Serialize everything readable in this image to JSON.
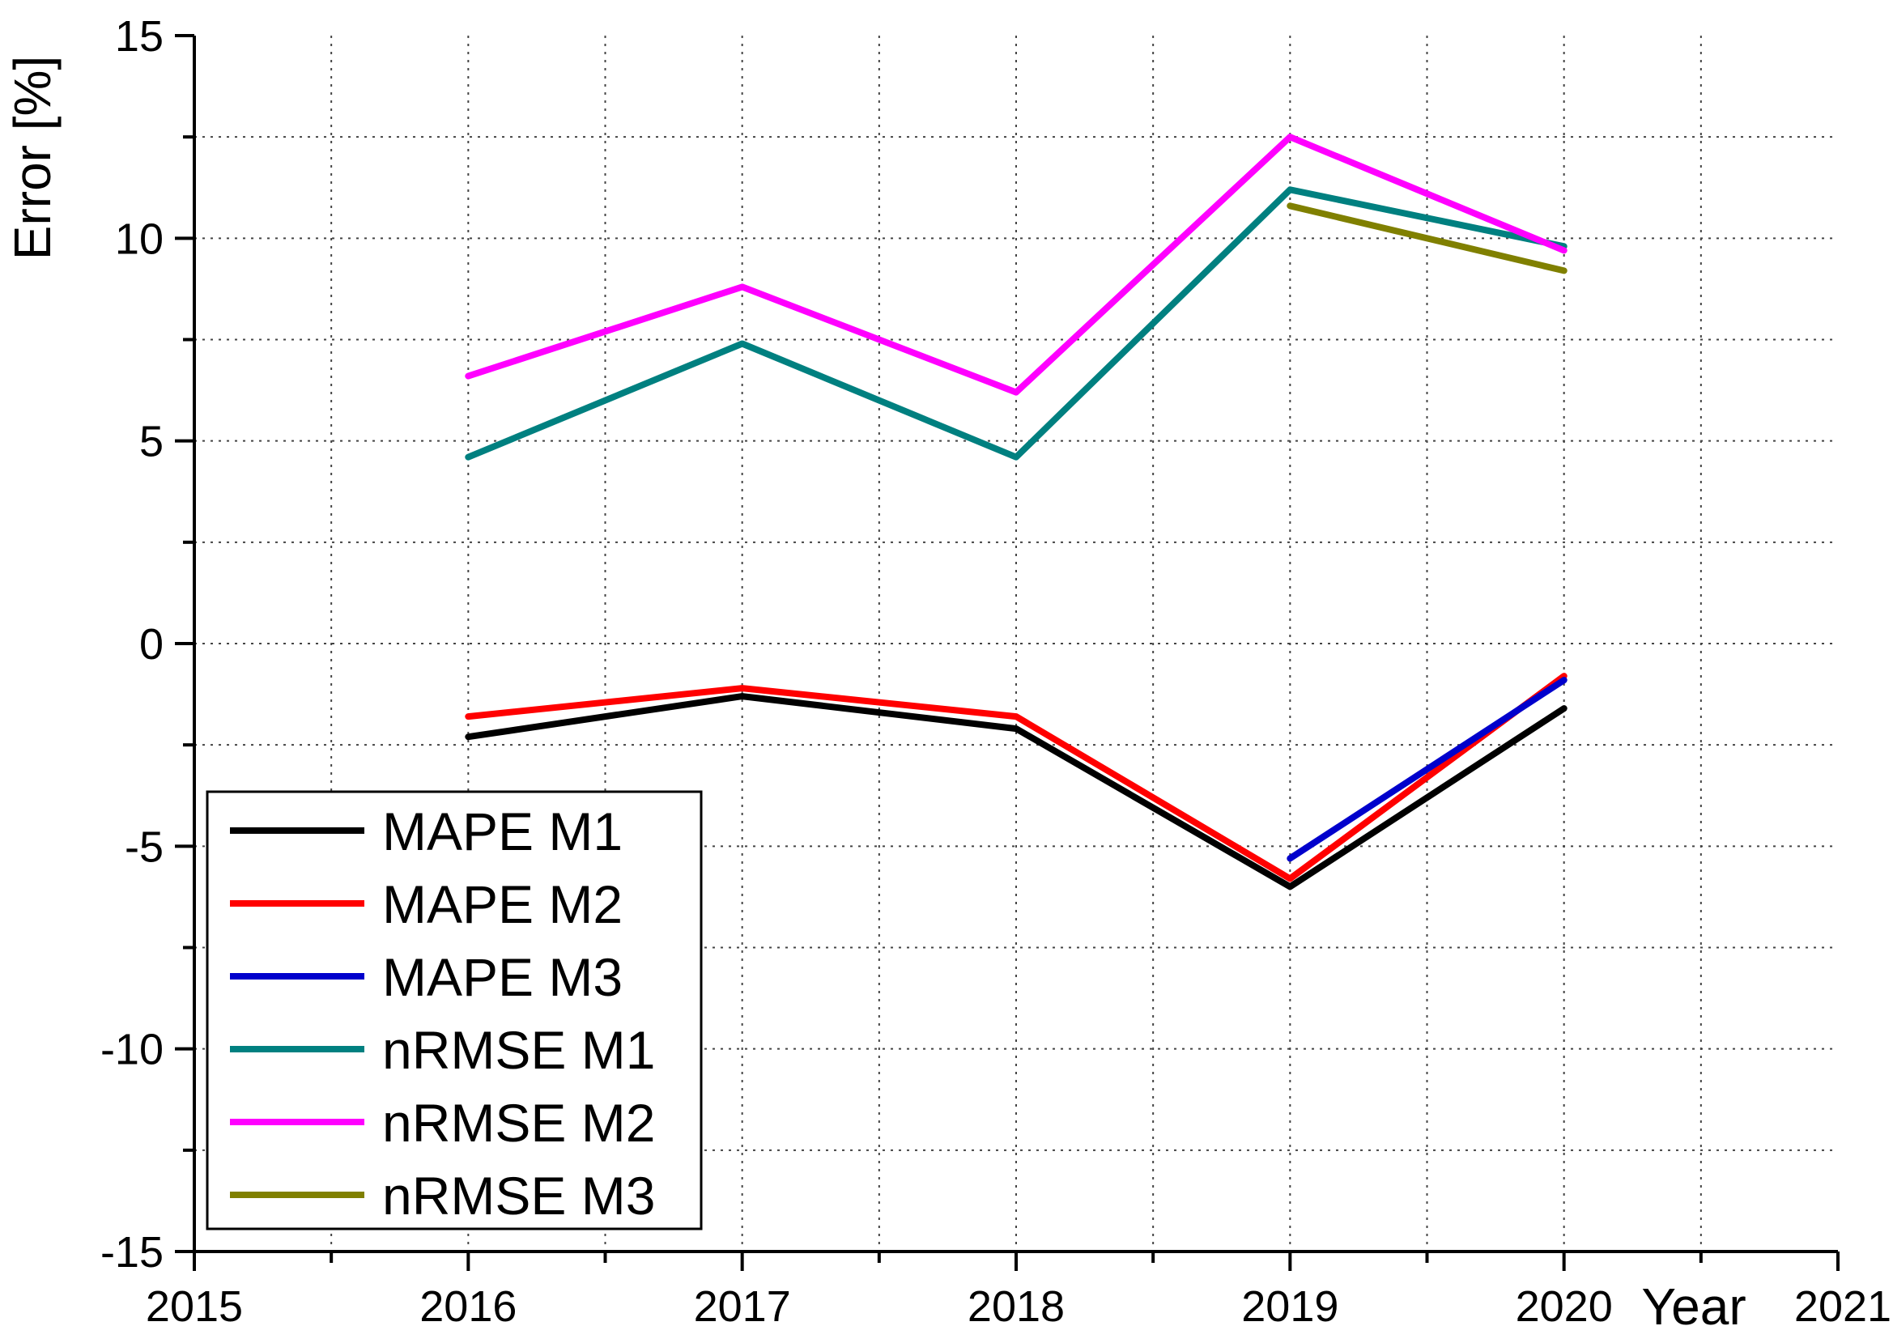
{
  "chart_data": {
    "type": "line",
    "title": "",
    "xlabel": "Year",
    "ylabel": "Error [%]",
    "xlim": [
      2015,
      2021
    ],
    "ylim": [
      -15,
      15
    ],
    "x_ticks": [
      "2015",
      "2016",
      "2017",
      "2018",
      "2019",
      "2020",
      "2021"
    ],
    "y_ticks": [
      "15",
      "10",
      "5",
      "0",
      "-5",
      "-10",
      "-15"
    ],
    "grid": true,
    "legend_position": "bottom-left",
    "series": [
      {
        "name": "MAPE M1",
        "color": "#000000",
        "x": [
          2016,
          2017,
          2018,
          2019,
          2020
        ],
        "y": [
          -2.3,
          -1.3,
          -2.1,
          -6.0,
          -1.6
        ]
      },
      {
        "name": "MAPE M2",
        "color": "#ff0000",
        "x": [
          2016,
          2017,
          2018,
          2019,
          2020
        ],
        "y": [
          -1.8,
          -1.1,
          -1.8,
          -5.8,
          -0.8
        ]
      },
      {
        "name": "MAPE M3",
        "color": "#0000cc",
        "x": [
          2019,
          2020
        ],
        "y": [
          -5.3,
          -0.9
        ]
      },
      {
        "name": "nRMSE M1",
        "color": "#008080",
        "x": [
          2016,
          2017,
          2018,
          2019,
          2020
        ],
        "y": [
          4.6,
          7.4,
          4.6,
          11.2,
          9.8
        ]
      },
      {
        "name": "nRMSE M2",
        "color": "#ff00ff",
        "x": [
          2016,
          2017,
          2018,
          2019,
          2020
        ],
        "y": [
          6.6,
          8.8,
          6.2,
          12.5,
          9.7
        ]
      },
      {
        "name": "nRMSE M3",
        "color": "#808000",
        "x": [
          2019,
          2020
        ],
        "y": [
          10.8,
          9.2
        ]
      }
    ]
  }
}
